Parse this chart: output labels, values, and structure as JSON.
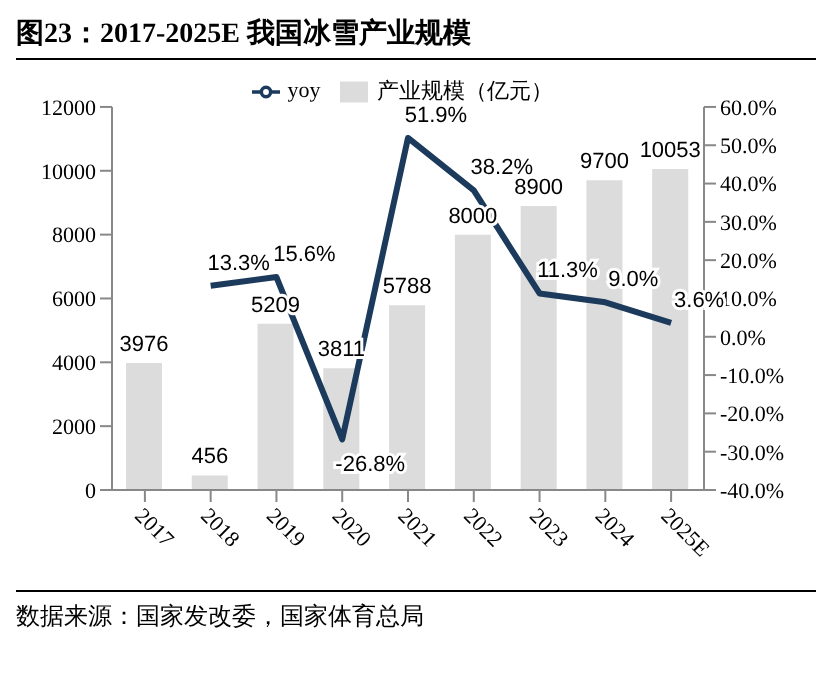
{
  "chart_data": {
    "type": "bar",
    "title": "图23：2017-2025E 我国冰雪产业规模",
    "categories": [
      "2017",
      "2018",
      "2019",
      "2020",
      "2021",
      "2022",
      "2023",
      "2024",
      "2025E"
    ],
    "series": [
      {
        "name": "产业规模（亿元）",
        "color": "#dcdcdc",
        "values": [
          3976,
          456,
          5209,
          3811,
          5788,
          8000,
          8900,
          9700,
          10053
        ],
        "value_labels": [
          "3976",
          "456",
          "5209",
          "3811",
          "5788",
          "8000",
          "8900",
          "9700",
          "10053"
        ]
      },
      {
        "name": "yoy",
        "type": "line",
        "axis": "y2",
        "color": "#1b3a5c",
        "values": [
          null,
          13.3,
          15.6,
          -26.8,
          51.9,
          38.2,
          11.3,
          9.0,
          3.6
        ],
        "value_labels": [
          null,
          "13.3%",
          "15.6%",
          "-26.8%",
          "51.9%",
          "38.2%",
          "11.3%",
          "9.0%",
          "3.6%"
        ]
      }
    ],
    "ylim": [
      0,
      12000
    ],
    "yticks": [
      0,
      2000,
      4000,
      6000,
      8000,
      10000,
      12000
    ],
    "y2lim": [
      -40,
      60
    ],
    "y2ticks": [
      {
        "value": -40,
        "label": "-40.0%"
      },
      {
        "value": -30,
        "label": "-30.0%"
      },
      {
        "value": -20,
        "label": "-20.0%"
      },
      {
        "value": -10,
        "label": "-10.0%"
      },
      {
        "value": 0,
        "label": "0.0%"
      },
      {
        "value": 10,
        "label": "10.0%"
      },
      {
        "value": 20,
        "label": "20.0%"
      },
      {
        "value": 30,
        "label": "30.0%"
      },
      {
        "value": 40,
        "label": "40.0%"
      },
      {
        "value": 50,
        "label": "50.0%"
      },
      {
        "value": 60,
        "label": "60.0%"
      }
    ],
    "legend": "top",
    "grid": false,
    "marker": "none",
    "annotations": [
      "数据来源：国家发改委，国家体育总局"
    ]
  }
}
